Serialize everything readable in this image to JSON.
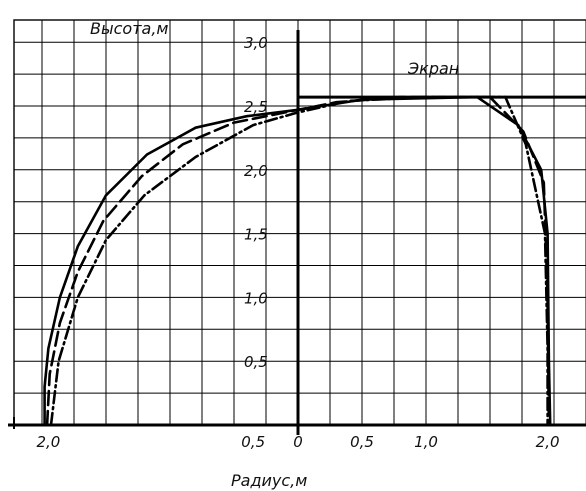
{
  "chart_data": {
    "type": "line",
    "title": "",
    "ylabel": "Высота,м",
    "xlabel": "Радиус,м",
    "screen_label": "Экран",
    "x_tick_labels": [
      "2,0",
      "0,5",
      "0",
      "0,5",
      "1,0",
      "2,0"
    ],
    "y_tick_labels": [
      "0,5",
      "1,0",
      "1,5",
      "2,0",
      "2,5",
      "3,0"
    ],
    "x_range": [
      -2.0,
      2.25
    ],
    "y_range": [
      -0.25,
      3.1
    ],
    "grid": true,
    "screen_height": 2.57,
    "colors": {
      "line": "#000000",
      "grid": "#000000",
      "background": "#ffffff"
    },
    "series": [
      {
        "style": "solid",
        "points": [
          [
            -1.98,
            0
          ],
          [
            -1.98,
            0.3
          ],
          [
            -1.95,
            0.6
          ],
          [
            -1.86,
            1.0
          ],
          [
            -1.72,
            1.4
          ],
          [
            -1.5,
            1.8
          ],
          [
            -1.18,
            2.12
          ],
          [
            -0.8,
            2.33
          ],
          [
            -0.4,
            2.42
          ],
          [
            0,
            2.47
          ],
          [
            0.5,
            2.55
          ],
          [
            1.4,
            2.57
          ],
          [
            1.72,
            2.35
          ],
          [
            1.9,
            2.0
          ],
          [
            1.95,
            1.5
          ],
          [
            1.96,
            0.5
          ],
          [
            1.97,
            0
          ]
        ]
      },
      {
        "style": "dashed",
        "points": [
          [
            -1.96,
            0
          ],
          [
            -1.94,
            0.4
          ],
          [
            -1.86,
            0.8
          ],
          [
            -1.72,
            1.2
          ],
          [
            -1.52,
            1.6
          ],
          [
            -1.22,
            1.95
          ],
          [
            -0.9,
            2.2
          ],
          [
            -0.5,
            2.37
          ],
          [
            -0.1,
            2.45
          ],
          [
            0.3,
            2.53
          ],
          [
            0.8,
            2.57
          ],
          [
            1.5,
            2.57
          ],
          [
            1.76,
            2.3
          ],
          [
            1.92,
            1.9
          ],
          [
            1.95,
            1.0
          ],
          [
            1.96,
            0
          ]
        ]
      },
      {
        "style": "dash-dot",
        "points": [
          [
            -1.93,
            0
          ],
          [
            -1.87,
            0.5
          ],
          [
            -1.72,
            1.0
          ],
          [
            -1.5,
            1.45
          ],
          [
            -1.2,
            1.8
          ],
          [
            -0.8,
            2.1
          ],
          [
            -0.35,
            2.35
          ],
          [
            0,
            2.45
          ],
          [
            0.4,
            2.54
          ],
          [
            1.0,
            2.57
          ],
          [
            1.62,
            2.57
          ],
          [
            1.78,
            2.2
          ],
          [
            1.93,
            1.5
          ],
          [
            1.95,
            0.6
          ],
          [
            1.95,
            0
          ]
        ]
      }
    ]
  }
}
